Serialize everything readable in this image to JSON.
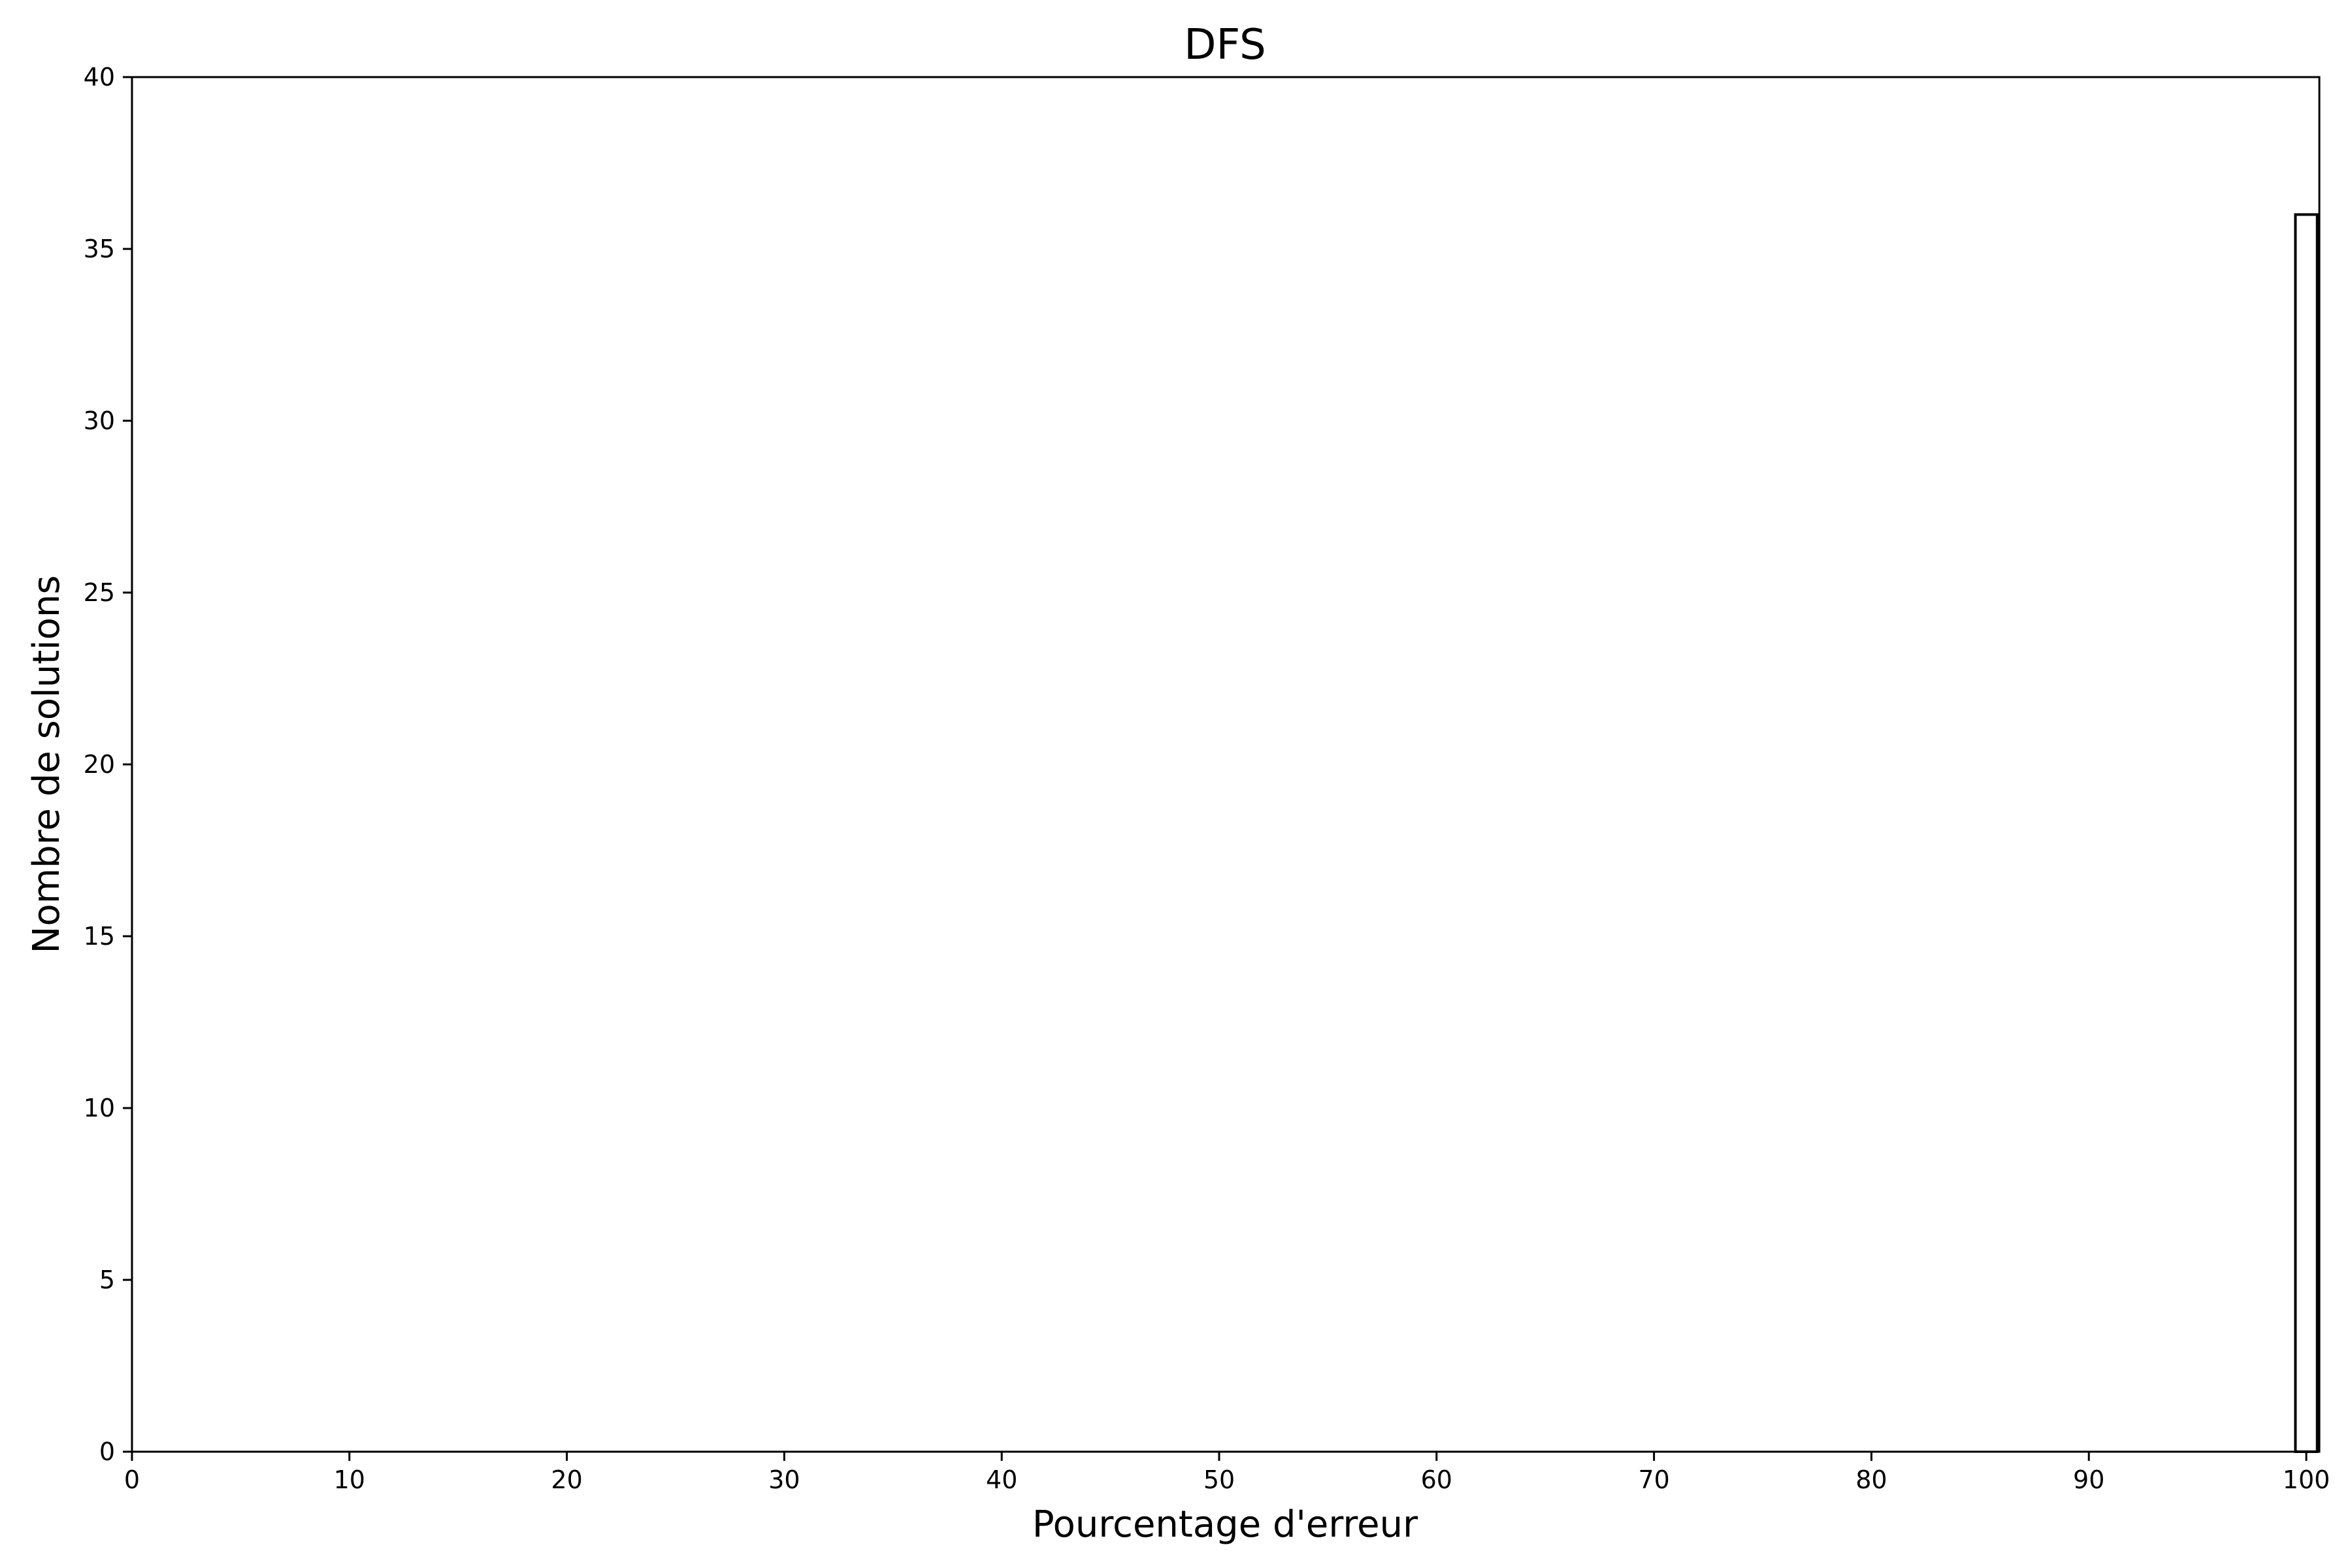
{
  "chart_data": {
    "type": "bar",
    "title": "DFS",
    "xlabel": "Pourcentage d'erreur",
    "ylabel": "Nombre de solutions",
    "xlim": [
      0,
      100.6
    ],
    "ylim": [
      0,
      40
    ],
    "xticks": [
      0,
      10,
      20,
      30,
      40,
      50,
      60,
      70,
      80,
      90,
      100
    ],
    "yticks": [
      0,
      5,
      10,
      15,
      20,
      25,
      30,
      35,
      40
    ],
    "grid": false,
    "bars": [
      {
        "x_start": 99.5,
        "x_end": 100.5,
        "value": 36
      }
    ],
    "bar_fill": "#ffffff",
    "bar_edge": "#000000"
  }
}
